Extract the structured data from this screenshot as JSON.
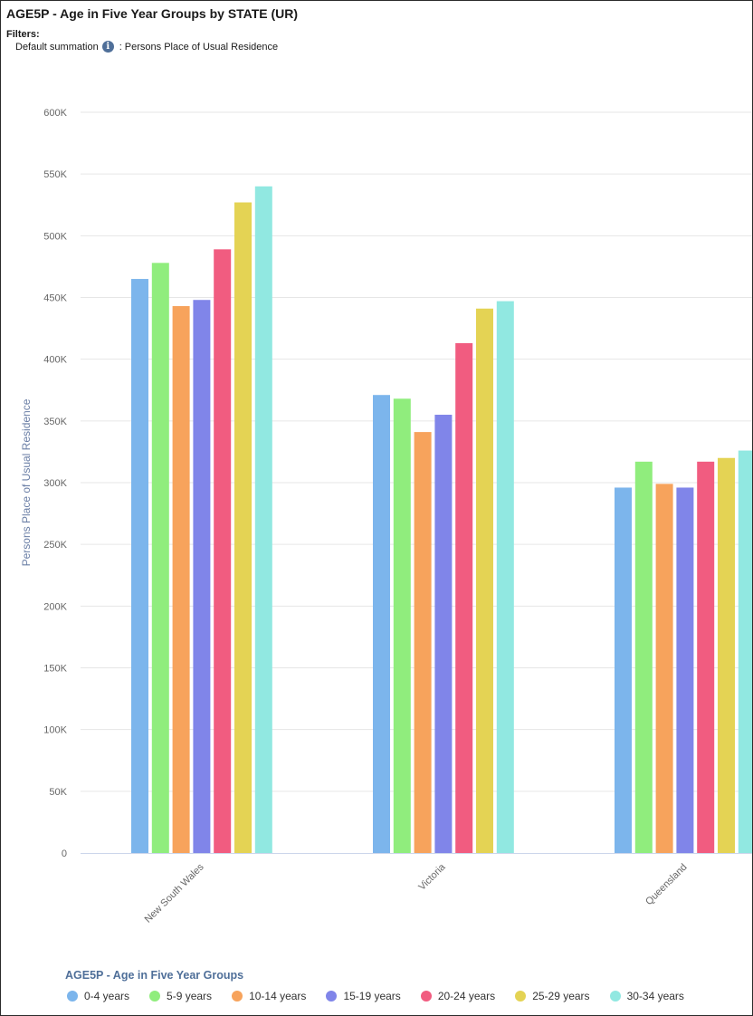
{
  "header": {
    "title": "AGE5P - Age in Five Year Groups by STATE (UR)",
    "filters_label": "Filters:",
    "filter_name": "Default summation",
    "filter_separator": ":",
    "filter_value": "Persons Place of Usual Residence",
    "info_icon": "info-icon"
  },
  "chart_data": {
    "type": "bar",
    "title": "AGE5P - Age in Five Year Groups by STATE (UR)",
    "ylabel": "Persons Place of Usual Residence",
    "xlabel": "",
    "ylim": [
      0,
      600000
    ],
    "y_ticks": [
      0,
      50000,
      100000,
      150000,
      200000,
      250000,
      300000,
      350000,
      400000,
      450000,
      500000,
      550000,
      600000
    ],
    "y_tick_labels": [
      "0",
      "50K",
      "100K",
      "150K",
      "200K",
      "250K",
      "300K",
      "350K",
      "400K",
      "450K",
      "500K",
      "550K",
      "600K"
    ],
    "grid": true,
    "categories": [
      "New South Wales",
      "Victoria",
      "Queensland"
    ],
    "legend_title": "AGE5P - Age in Five Year Groups",
    "legend_position": "bottom-left",
    "series": [
      {
        "name": "0-4 years",
        "color": "#7cb5ec",
        "values": [
          465000,
          371000,
          296000
        ]
      },
      {
        "name": "5-9 years",
        "color": "#90ed7d",
        "values": [
          478000,
          368000,
          317000
        ]
      },
      {
        "name": "10-14 years",
        "color": "#f7a35c",
        "values": [
          443000,
          341000,
          299000
        ]
      },
      {
        "name": "15-19 years",
        "color": "#8085e9",
        "values": [
          448000,
          355000,
          296000
        ]
      },
      {
        "name": "20-24 years",
        "color": "#f15c80",
        "values": [
          489000,
          413000,
          317000
        ]
      },
      {
        "name": "25-29 years",
        "color": "#e4d354",
        "values": [
          527000,
          441000,
          320000
        ]
      },
      {
        "name": "30-34 years",
        "color": "#91e8e1",
        "values": [
          540000,
          447000,
          326000
        ]
      }
    ]
  }
}
